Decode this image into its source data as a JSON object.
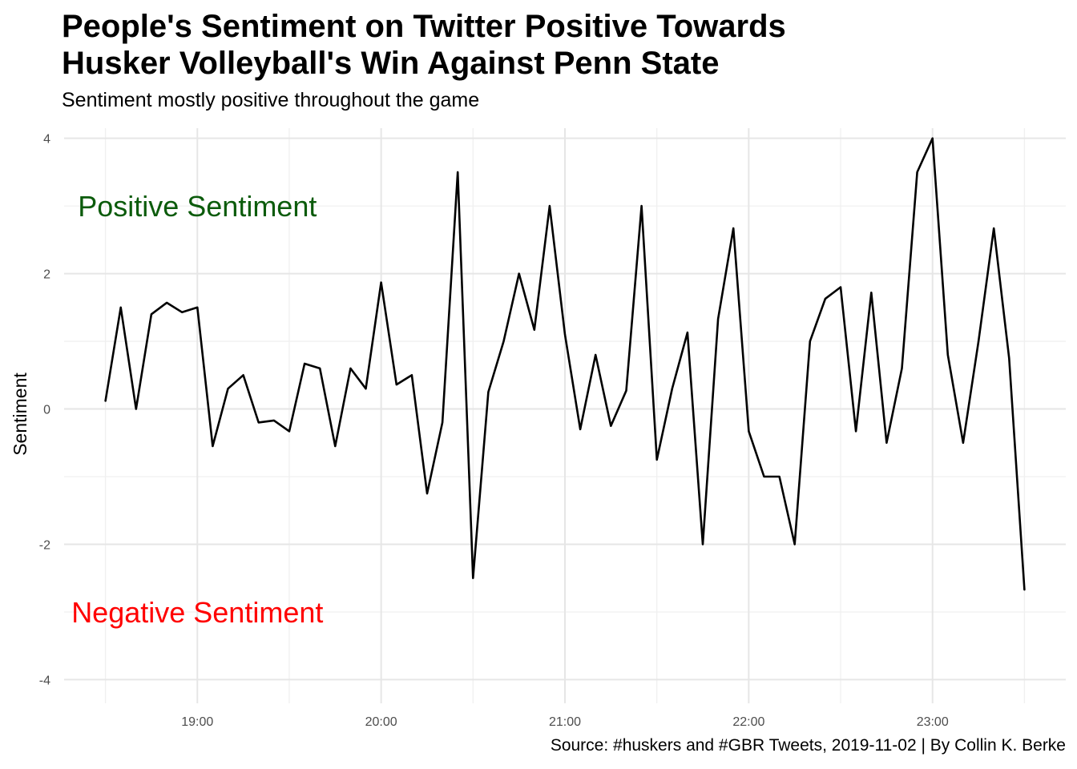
{
  "chart_data": {
    "type": "line",
    "title_lines": [
      "People's Sentiment on Twitter Positive Towards",
      "Husker Volleyball's Win Against Penn State"
    ],
    "subtitle": "Sentiment mostly positive throughout the game",
    "caption": "Source: #huskers and #GBR Tweets, 2019-11-02 | By Collin K. Berke",
    "xlabel": "",
    "ylabel": "Sentiment",
    "x_time_start": "18:30",
    "x_time_step_minutes": 5,
    "x_ticks": [
      "19:00",
      "20:00",
      "21:00",
      "22:00",
      "23:00"
    ],
    "y_ticks": [
      -4,
      -2,
      0,
      2,
      4
    ],
    "ylim": [
      -4.35,
      4.15
    ],
    "grid": true,
    "series": [
      {
        "color": "#000000",
        "values": [
          0.12,
          1.5,
          0.0,
          1.4,
          1.57,
          1.43,
          1.5,
          -0.55,
          0.3,
          0.5,
          -0.2,
          -0.17,
          -0.33,
          0.67,
          0.6,
          -0.55,
          0.6,
          0.3,
          1.87,
          0.36,
          0.5,
          -1.25,
          -0.2,
          3.5,
          -2.5,
          0.25,
          1.0,
          2.0,
          1.17,
          3.0,
          1.1,
          -0.3,
          0.8,
          -0.25,
          0.27,
          3.0,
          -0.75,
          0.3,
          1.13,
          -2.0,
          1.33,
          2.67,
          -0.33,
          -1.0,
          -1.0,
          -2.0,
          1.0,
          1.63,
          1.8,
          -0.33,
          1.72,
          -0.5,
          0.6,
          3.5,
          4.0,
          0.8,
          -0.5,
          1.0,
          2.67,
          0.75,
          -2.67
        ]
      }
    ],
    "annotations": [
      {
        "text": "Positive Sentiment",
        "x": "19:00",
        "y": 3.0,
        "color": "#0b5b0b"
      },
      {
        "text": "Negative Sentiment",
        "x": "19:00",
        "y": -3.0,
        "color": "#ff0000"
      }
    ]
  }
}
